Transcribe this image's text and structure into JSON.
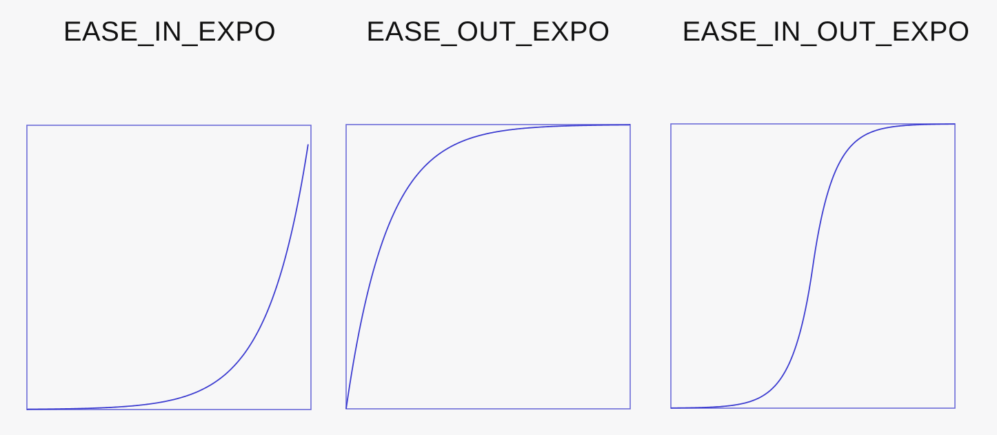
{
  "chart_data": [
    {
      "type": "line",
      "title": "EASE_IN_EXPO",
      "easing": "ease-in-expo",
      "xlim": [
        0,
        1
      ],
      "ylim": [
        0,
        1
      ],
      "x": [
        0,
        0.1,
        0.2,
        0.3,
        0.4,
        0.5,
        0.6,
        0.7,
        0.8,
        0.9,
        0.99
      ],
      "y": [
        0.001,
        0.002,
        0.004,
        0.008,
        0.016,
        0.031,
        0.063,
        0.125,
        0.25,
        0.5,
        0.933
      ],
      "series": [
        {
          "color": "#3b3bd0"
        }
      ],
      "frame_color": "#6a6ad8"
    },
    {
      "type": "line",
      "title": "EASE_OUT_EXPO",
      "easing": "ease-out-expo",
      "xlim": [
        0,
        1
      ],
      "ylim": [
        0,
        1
      ],
      "x": [
        0,
        0.1,
        0.2,
        0.3,
        0.4,
        0.5,
        0.6,
        0.7,
        0.8,
        0.9,
        1.0
      ],
      "y": [
        0,
        0.5,
        0.75,
        0.875,
        0.938,
        0.969,
        0.984,
        0.992,
        0.996,
        0.998,
        1.0
      ],
      "series": [
        {
          "color": "#3b3bd0"
        }
      ],
      "frame_color": "#6a6ad8"
    },
    {
      "type": "line",
      "title": "EASE_IN_OUT_EXPO",
      "easing": "ease-in-out-expo",
      "xlim": [
        0,
        1
      ],
      "ylim": [
        0,
        1
      ],
      "x": [
        0,
        0.1,
        0.2,
        0.3,
        0.4,
        0.5,
        0.6,
        0.7,
        0.8,
        0.9,
        1.0
      ],
      "y": [
        0,
        0.002,
        0.008,
        0.031,
        0.125,
        0.5,
        0.875,
        0.969,
        0.992,
        0.998,
        1.0
      ],
      "series": [
        {
          "color": "#3b3bd0"
        }
      ],
      "frame_color": "#6a6ad8"
    }
  ]
}
